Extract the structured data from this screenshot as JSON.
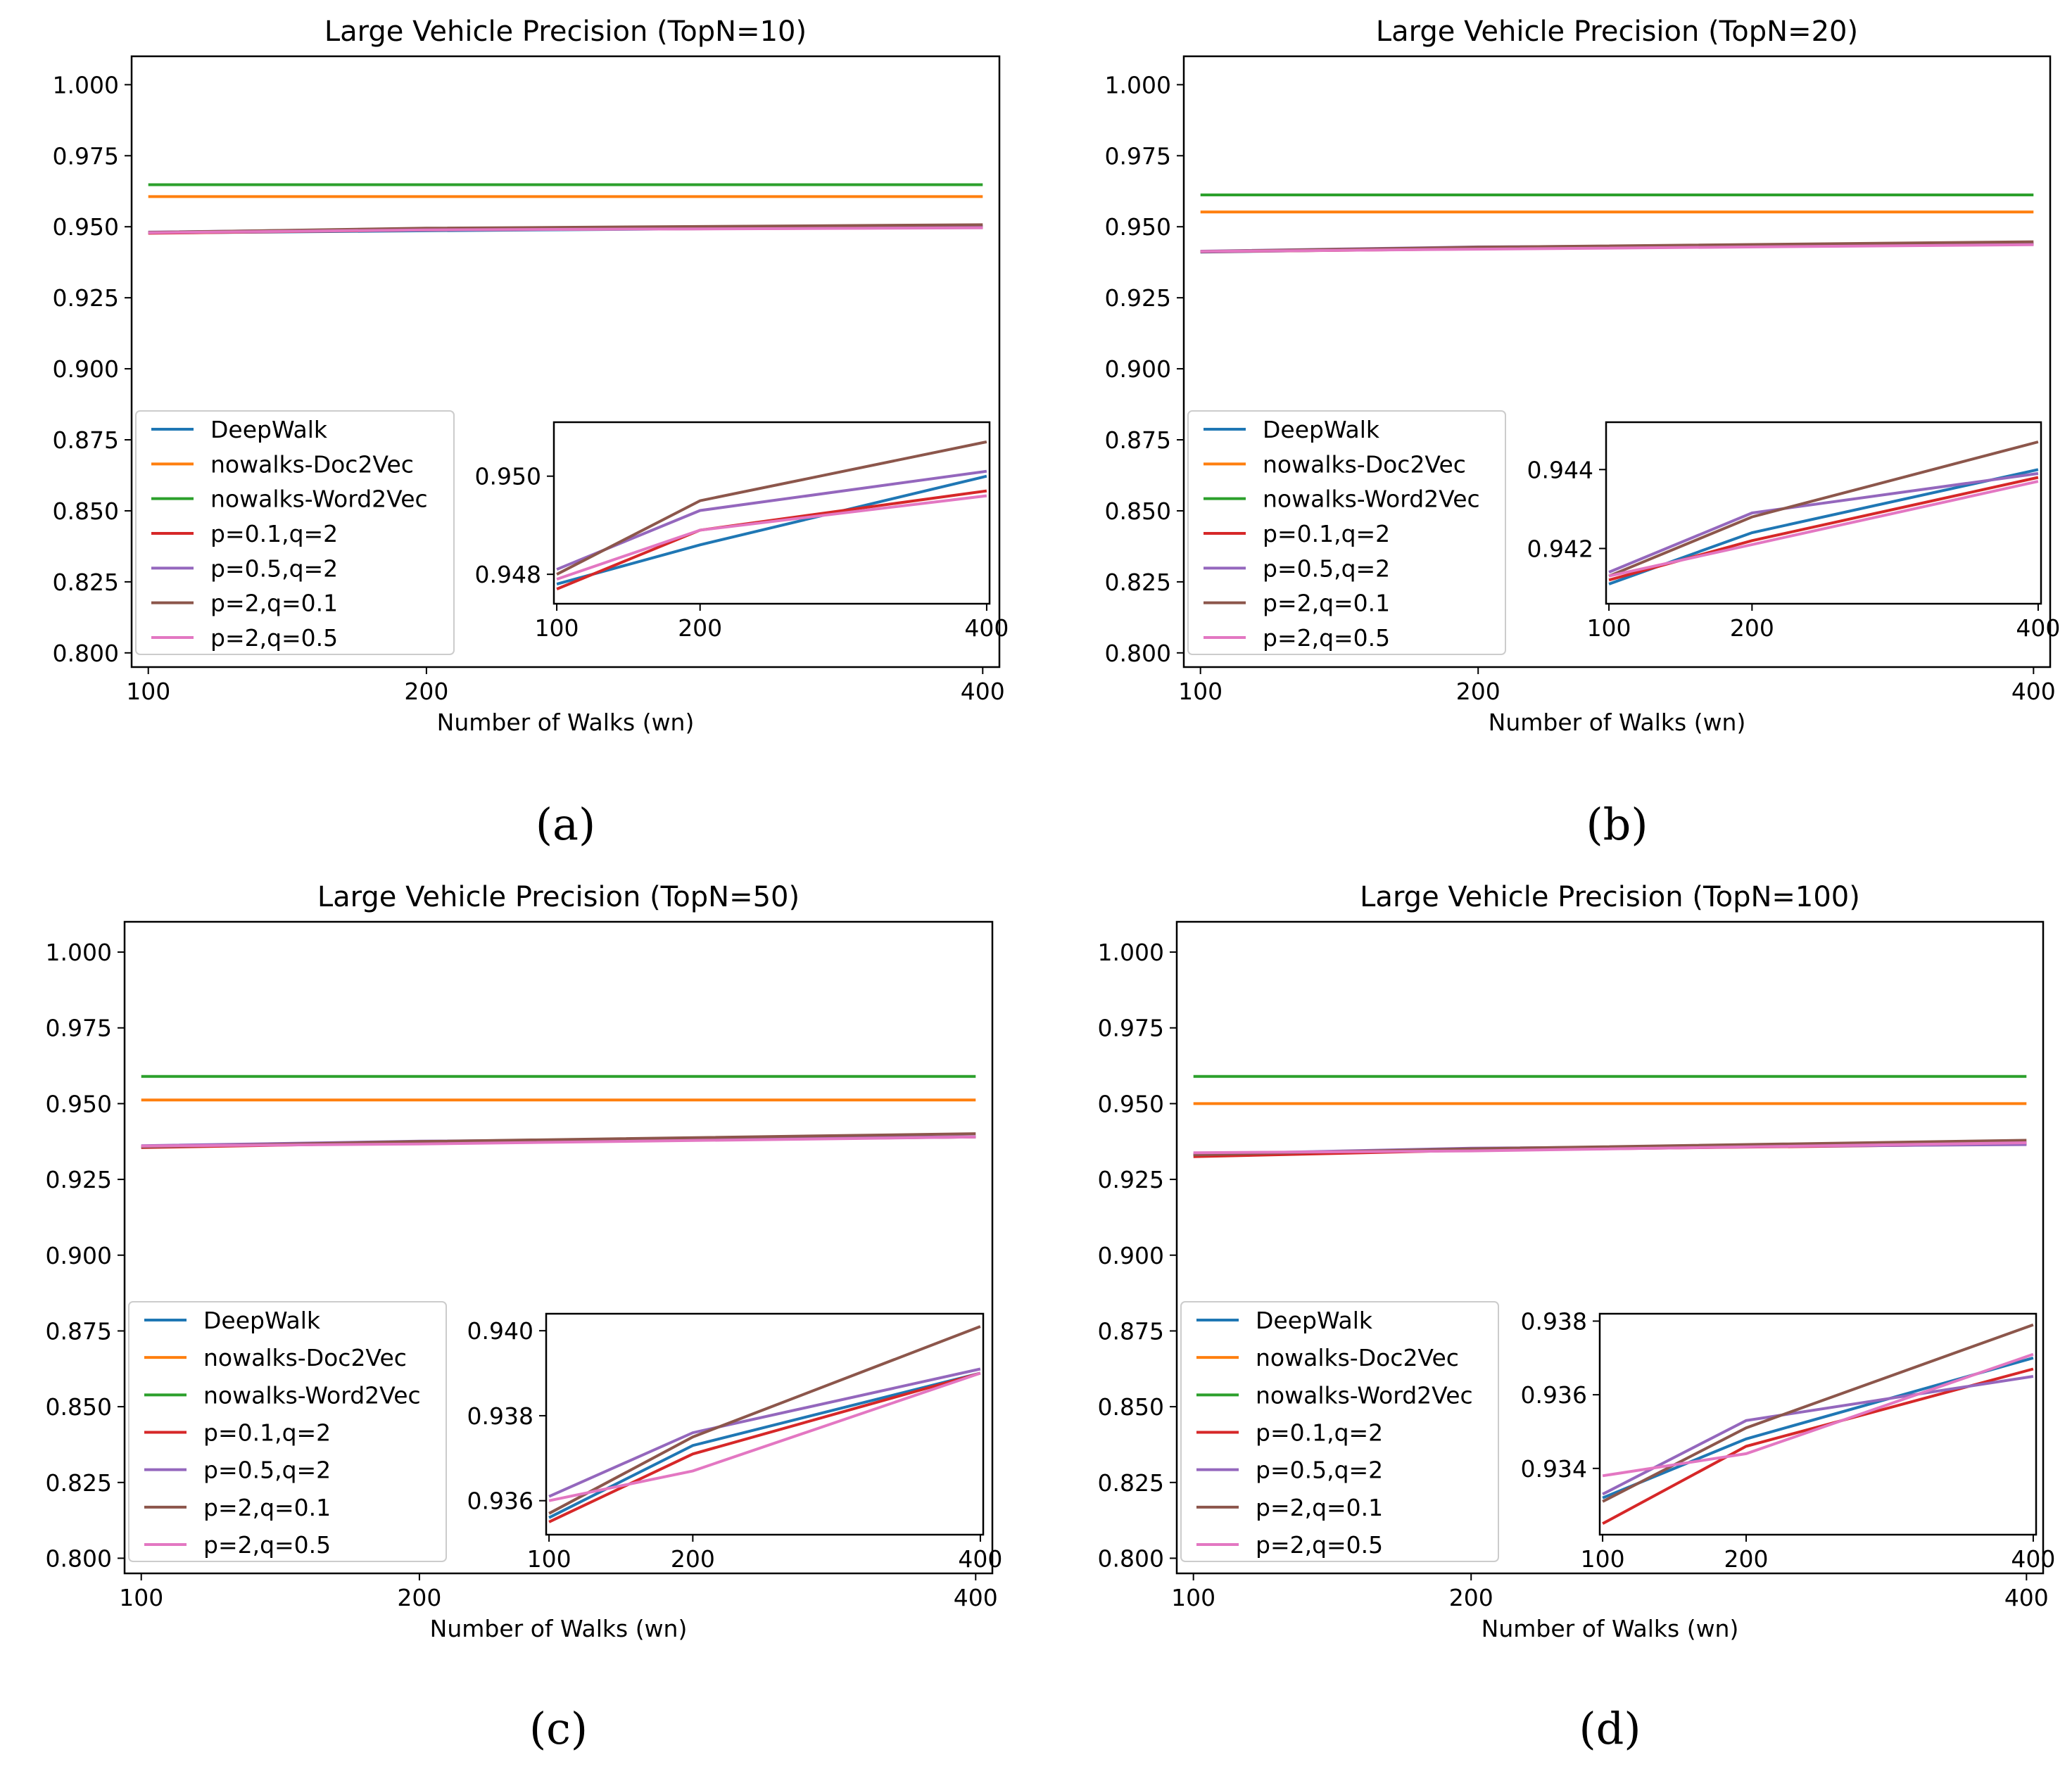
{
  "colors": {
    "DeepWalk": "#1f77b4",
    "nowalks-Doc2Vec": "#ff7f0e",
    "nowalks-Word2Vec": "#2ca02c",
    "p=0.1,q=2": "#d62728",
    "p=0.5,q=2": "#9467bd",
    "p=2,q=0.1": "#8c564b",
    "p=2,q=0.5": "#e377c2"
  },
  "chart_data": [
    {
      "type": "line",
      "caption": "(a)",
      "title": "Large Vehicle Precision (TopN=10)",
      "xlabel": "Number of Walks (wn)",
      "ylabel": "",
      "x": [
        100,
        200,
        400
      ],
      "xticks": [
        "100",
        "200",
        "400"
      ],
      "ylim": [
        0.795,
        1.01
      ],
      "yticks": [
        "0.800",
        "0.825",
        "0.850",
        "0.875",
        "0.900",
        "0.925",
        "0.950",
        "0.975",
        "1.000"
      ],
      "legend": "lower-left",
      "series": [
        {
          "name": "DeepWalk",
          "values": [
            0.9478,
            0.9486,
            0.95
          ]
        },
        {
          "name": "nowalks-Doc2Vec",
          "values": [
            0.9606,
            0.9606,
            0.9606
          ]
        },
        {
          "name": "nowalks-Word2Vec",
          "values": [
            0.9648,
            0.9648,
            0.9648
          ]
        },
        {
          "name": "p=0.1,q=2",
          "values": [
            0.9477,
            0.9489,
            0.9497
          ]
        },
        {
          "name": "p=0.5,q=2",
          "values": [
            0.9481,
            0.9493,
            0.9501
          ]
        },
        {
          "name": "p=2,q=0.1",
          "values": [
            0.948,
            0.9495,
            0.9507
          ]
        },
        {
          "name": "p=2,q=0.5",
          "values": [
            0.9479,
            0.9489,
            0.9496
          ]
        }
      ],
      "inset": {
        "xticks": [
          "100",
          "200",
          "400"
        ],
        "ylim": [
          0.9474,
          0.9511
        ],
        "yticks": [
          "0.948",
          "0.950"
        ]
      }
    },
    {
      "type": "line",
      "caption": "(b)",
      "title": "Large Vehicle Precision (TopN=20)",
      "xlabel": "Number of Walks (wn)",
      "ylabel": "",
      "x": [
        100,
        200,
        400
      ],
      "xticks": [
        "100",
        "200",
        "400"
      ],
      "ylim": [
        0.795,
        1.01
      ],
      "yticks": [
        "0.800",
        "0.825",
        "0.850",
        "0.875",
        "0.900",
        "0.925",
        "0.950",
        "0.975",
        "1.000"
      ],
      "legend": "lower-left",
      "series": [
        {
          "name": "DeepWalk",
          "values": [
            0.9411,
            0.9424,
            0.944
          ]
        },
        {
          "name": "nowalks-Doc2Vec",
          "values": [
            0.9552,
            0.9552,
            0.9552
          ]
        },
        {
          "name": "nowalks-Word2Vec",
          "values": [
            0.9612,
            0.9612,
            0.9612
          ]
        },
        {
          "name": "p=0.1,q=2",
          "values": [
            0.9412,
            0.9422,
            0.9438
          ]
        },
        {
          "name": "p=0.5,q=2",
          "values": [
            0.9414,
            0.9429,
            0.9439
          ]
        },
        {
          "name": "p=2,q=0.1",
          "values": [
            0.9413,
            0.9428,
            0.9447
          ]
        },
        {
          "name": "p=2,q=0.5",
          "values": [
            0.9413,
            0.9421,
            0.9437
          ]
        }
      ],
      "inset": {
        "xticks": [
          "100",
          "200",
          "400"
        ],
        "ylim": [
          0.9406,
          0.9452
        ],
        "yticks": [
          "0.942",
          "0.944"
        ]
      }
    },
    {
      "type": "line",
      "caption": "(c)",
      "title": "Large Vehicle Precision (TopN=50)",
      "xlabel": "Number of Walks (wn)",
      "ylabel": "",
      "x": [
        100,
        200,
        400
      ],
      "xticks": [
        "100",
        "200",
        "400"
      ],
      "ylim": [
        0.795,
        1.01
      ],
      "yticks": [
        "0.800",
        "0.825",
        "0.850",
        "0.875",
        "0.900",
        "0.925",
        "0.950",
        "0.975",
        "1.000"
      ],
      "legend": "lower-left",
      "series": [
        {
          "name": "DeepWalk",
          "values": [
            0.9356,
            0.9373,
            0.939
          ]
        },
        {
          "name": "nowalks-Doc2Vec",
          "values": [
            0.9512,
            0.9512,
            0.9512
          ]
        },
        {
          "name": "nowalks-Word2Vec",
          "values": [
            0.959,
            0.959,
            0.959
          ]
        },
        {
          "name": "p=0.1,q=2",
          "values": [
            0.9355,
            0.9371,
            0.939
          ]
        },
        {
          "name": "p=0.5,q=2",
          "values": [
            0.9361,
            0.9376,
            0.9391
          ]
        },
        {
          "name": "p=2,q=0.1",
          "values": [
            0.9357,
            0.9375,
            0.9401
          ]
        },
        {
          "name": "p=2,q=0.5",
          "values": [
            0.936,
            0.9367,
            0.939
          ]
        }
      ],
      "inset": {
        "xticks": [
          "100",
          "200",
          "400"
        ],
        "ylim": [
          0.9352,
          0.9404
        ],
        "yticks": [
          "0.936",
          "0.938",
          "0.940"
        ]
      }
    },
    {
      "type": "line",
      "caption": "(d)",
      "title": "Large Vehicle Precision (TopN=100)",
      "xlabel": "Number of Walks (wn)",
      "ylabel": "",
      "x": [
        100,
        200,
        400
      ],
      "xticks": [
        "100",
        "200",
        "400"
      ],
      "ylim": [
        0.795,
        1.01
      ],
      "yticks": [
        "0.800",
        "0.825",
        "0.850",
        "0.875",
        "0.900",
        "0.925",
        "0.950",
        "0.975",
        "1.000"
      ],
      "legend": "lower-left",
      "series": [
        {
          "name": "DeepWalk",
          "values": [
            0.9332,
            0.9348,
            0.937
          ]
        },
        {
          "name": "nowalks-Doc2Vec",
          "values": [
            0.95,
            0.95,
            0.95
          ]
        },
        {
          "name": "nowalks-Word2Vec",
          "values": [
            0.959,
            0.959,
            0.959
          ]
        },
        {
          "name": "p=0.1,q=2",
          "values": [
            0.9325,
            0.9346,
            0.9367
          ]
        },
        {
          "name": "p=0.5,q=2",
          "values": [
            0.9333,
            0.9353,
            0.9365
          ]
        },
        {
          "name": "p=2,q=0.1",
          "values": [
            0.9331,
            0.9351,
            0.9379
          ]
        },
        {
          "name": "p=2,q=0.5",
          "values": [
            0.9338,
            0.9344,
            0.9371
          ]
        }
      ],
      "inset": {
        "xticks": [
          "100",
          "200",
          "400"
        ],
        "ylim": [
          0.9322,
          0.9382
        ],
        "yticks": [
          "0.934",
          "0.936",
          "0.938"
        ]
      }
    }
  ]
}
